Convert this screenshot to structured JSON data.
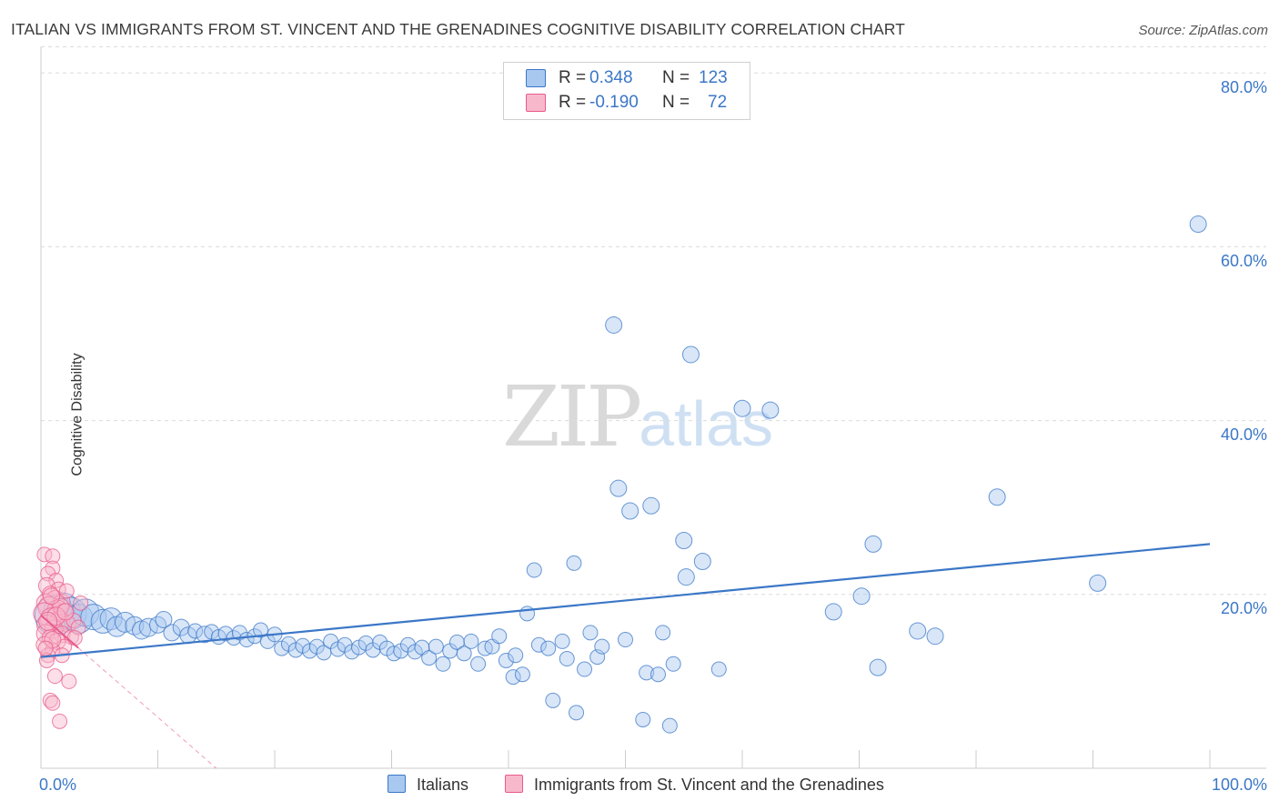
{
  "title": "ITALIAN VS IMMIGRANTS FROM ST. VINCENT AND THE GRENADINES COGNITIVE DISABILITY CORRELATION CHART",
  "source": "Source: ZipAtlas.com",
  "watermark": {
    "zip": "ZIP",
    "atlas": "atlas"
  },
  "legend": {
    "rows": [
      {
        "r_label": "R =",
        "r_value": "0.348",
        "n_label": "N =",
        "n_value": "123",
        "color": "#a8c8f0"
      },
      {
        "r_label": "R =",
        "r_value": "-0.190",
        "n_label": "N =",
        "n_value": "72",
        "color": "#f8b8cc"
      }
    ]
  },
  "colors": {
    "blue": "#3b77c7",
    "blue_fill": "#a8c8f0",
    "pink": "#e85a8a",
    "pink_fill": "#f8b8cc"
  },
  "chart_data": {
    "type": "scatter",
    "title": "ITALIAN VS IMMIGRANTS FROM ST. VINCENT AND THE GRENADINES COGNITIVE DISABILITY CORRELATION CHART",
    "xlabel": "",
    "ylabel": "Cognitive Disability",
    "xlim": [
      0,
      100
    ],
    "ylim": [
      0,
      83
    ],
    "x_tick_labels": [
      "0.0%",
      "100.0%"
    ],
    "y_ticks": [
      20,
      40,
      60,
      80
    ],
    "y_tick_labels": [
      "20.0%",
      "40.0%",
      "60.0%",
      "80.0%"
    ],
    "grid": true,
    "legend_position": "top-center",
    "series": [
      {
        "name": "Italians",
        "color": "#3b77c7",
        "trend": {
          "x": [
            0,
            100
          ],
          "y": [
            12.8,
            25.8
          ]
        },
        "points": [
          [
            1.2,
            17.6,
            22
          ],
          [
            1.8,
            18.1,
            20
          ],
          [
            2.5,
            17.8,
            18
          ],
          [
            3.2,
            17.2,
            16
          ],
          [
            3.8,
            17.9,
            15
          ],
          [
            4.5,
            17.4,
            14
          ],
          [
            5.3,
            16.9,
            13
          ],
          [
            6.0,
            17.2,
            12
          ],
          [
            6.5,
            16.3,
            11
          ],
          [
            7.2,
            16.8,
            11
          ],
          [
            8.0,
            16.4,
            10
          ],
          [
            8.6,
            15.9,
            10
          ],
          [
            9.2,
            16.2,
            10
          ],
          [
            10.0,
            16.5,
            9
          ],
          [
            10.5,
            17.1,
            9
          ],
          [
            11.2,
            15.6,
            9
          ],
          [
            12.0,
            16.2,
            9
          ],
          [
            12.6,
            15.3,
            9
          ],
          [
            13.2,
            15.8,
            8
          ],
          [
            14.0,
            15.4,
            9
          ],
          [
            14.6,
            15.7,
            8
          ],
          [
            15.2,
            15.1,
            8
          ],
          [
            15.8,
            15.5,
            8
          ],
          [
            16.5,
            15.0,
            8
          ],
          [
            17.0,
            15.6,
            8
          ],
          [
            17.6,
            14.8,
            8
          ],
          [
            18.3,
            15.2,
            8
          ],
          [
            18.8,
            15.9,
            8
          ],
          [
            19.4,
            14.6,
            8
          ],
          [
            20.0,
            15.4,
            8
          ],
          [
            20.6,
            13.8,
            8
          ],
          [
            21.2,
            14.3,
            8
          ],
          [
            21.8,
            13.6,
            8
          ],
          [
            22.4,
            14.1,
            8
          ],
          [
            23.0,
            13.5,
            8
          ],
          [
            23.6,
            14.0,
            8
          ],
          [
            24.2,
            13.3,
            8
          ],
          [
            24.8,
            14.6,
            8
          ],
          [
            25.4,
            13.7,
            8
          ],
          [
            26.0,
            14.2,
            8
          ],
          [
            26.6,
            13.4,
            8
          ],
          [
            27.2,
            13.9,
            8
          ],
          [
            27.8,
            14.4,
            8
          ],
          [
            28.4,
            13.6,
            8
          ],
          [
            29.0,
            14.5,
            8
          ],
          [
            29.6,
            13.8,
            8
          ],
          [
            30.2,
            13.2,
            8
          ],
          [
            30.8,
            13.5,
            8
          ],
          [
            31.4,
            14.2,
            8
          ],
          [
            32.0,
            13.4,
            8
          ],
          [
            32.6,
            13.9,
            8
          ],
          [
            33.2,
            12.7,
            8
          ],
          [
            33.8,
            14.0,
            8
          ],
          [
            34.4,
            12.0,
            8
          ],
          [
            35.0,
            13.5,
            8
          ],
          [
            35.6,
            14.5,
            8
          ],
          [
            36.2,
            13.2,
            8
          ],
          [
            36.8,
            14.6,
            8
          ],
          [
            37.4,
            12.0,
            8
          ],
          [
            38.0,
            13.8,
            8
          ],
          [
            38.6,
            14.0,
            8
          ],
          [
            39.2,
            15.2,
            8
          ],
          [
            39.8,
            12.4,
            8
          ],
          [
            40.4,
            10.5,
            8
          ],
          [
            40.6,
            13.0,
            8
          ],
          [
            41.2,
            10.8,
            8
          ],
          [
            41.6,
            17.8,
            8
          ],
          [
            42.2,
            22.8,
            8
          ],
          [
            42.6,
            14.2,
            8
          ],
          [
            43.4,
            13.8,
            8
          ],
          [
            43.8,
            7.8,
            8
          ],
          [
            44.6,
            14.6,
            8
          ],
          [
            45.0,
            12.6,
            8
          ],
          [
            45.6,
            23.6,
            8
          ],
          [
            45.8,
            6.4,
            8
          ],
          [
            46.5,
            11.4,
            8
          ],
          [
            47.0,
            15.6,
            8
          ],
          [
            47.6,
            12.8,
            8
          ],
          [
            48.0,
            14.0,
            8
          ],
          [
            49.0,
            51.0,
            9
          ],
          [
            49.4,
            32.2,
            9
          ],
          [
            50.0,
            14.8,
            8
          ],
          [
            50.4,
            29.6,
            9
          ],
          [
            51.5,
            5.6,
            8
          ],
          [
            51.8,
            11.0,
            8
          ],
          [
            52.2,
            30.2,
            9
          ],
          [
            52.8,
            10.8,
            8
          ],
          [
            53.2,
            15.6,
            8
          ],
          [
            53.8,
            4.9,
            8
          ],
          [
            54.1,
            12.0,
            8
          ],
          [
            55.0,
            26.2,
            9
          ],
          [
            55.2,
            22.0,
            9
          ],
          [
            55.6,
            47.6,
            9
          ],
          [
            56.6,
            23.8,
            9
          ],
          [
            58.0,
            11.4,
            8
          ],
          [
            60.0,
            41.4,
            9
          ],
          [
            62.4,
            41.2,
            9
          ],
          [
            67.8,
            18.0,
            9
          ],
          [
            70.2,
            19.8,
            9
          ],
          [
            71.2,
            25.8,
            9
          ],
          [
            71.6,
            11.6,
            9
          ],
          [
            75.0,
            15.8,
            9
          ],
          [
            76.5,
            15.2,
            9
          ],
          [
            81.8,
            31.2,
            9
          ],
          [
            90.4,
            21.3,
            9
          ],
          [
            99.0,
            62.6,
            9
          ]
        ]
      },
      {
        "name": "Immigrants from St. Vincent and the Grenadines",
        "color": "#e85a8a",
        "trend": {
          "x": [
            0,
            15
          ],
          "y": [
            17.6,
            0
          ]
        },
        "points": [
          [
            0.3,
            24.6,
            8
          ],
          [
            1.0,
            24.4,
            8
          ],
          [
            1.0,
            23.0,
            8
          ],
          [
            0.6,
            22.4,
            8
          ],
          [
            1.3,
            21.6,
            8
          ],
          [
            0.5,
            21.0,
            9
          ],
          [
            1.5,
            20.6,
            8
          ],
          [
            0.8,
            20.0,
            9
          ],
          [
            1.2,
            19.4,
            10
          ],
          [
            0.4,
            19.0,
            10
          ],
          [
            1.8,
            19.1,
            9
          ],
          [
            0.7,
            18.5,
            12
          ],
          [
            1.4,
            18.2,
            11
          ],
          [
            0.3,
            17.8,
            12
          ],
          [
            2.0,
            17.9,
            10
          ],
          [
            0.9,
            17.2,
            12
          ],
          [
            1.6,
            16.9,
            11
          ],
          [
            0.5,
            16.5,
            11
          ],
          [
            2.3,
            16.6,
            9
          ],
          [
            1.1,
            16.0,
            10
          ],
          [
            0.4,
            15.5,
            10
          ],
          [
            1.8,
            15.4,
            9
          ],
          [
            0.8,
            15.0,
            9
          ],
          [
            2.6,
            15.1,
            8
          ],
          [
            1.4,
            14.6,
            9
          ],
          [
            0.3,
            14.2,
            9
          ],
          [
            2.0,
            14.0,
            8
          ],
          [
            1.0,
            13.6,
            8
          ],
          [
            0.6,
            13.0,
            8
          ],
          [
            1.8,
            13.0,
            8
          ],
          [
            0.5,
            12.4,
            8
          ],
          [
            1.2,
            10.6,
            8
          ],
          [
            2.4,
            10.0,
            8
          ],
          [
            0.8,
            7.8,
            8
          ],
          [
            1.0,
            7.5,
            8
          ],
          [
            1.6,
            5.4,
            8
          ],
          [
            2.8,
            17.0,
            8
          ],
          [
            3.2,
            16.2,
            8
          ],
          [
            2.9,
            15.0,
            8
          ],
          [
            3.4,
            19.0,
            8
          ],
          [
            2.2,
            20.4,
            8
          ],
          [
            1.7,
            18.6,
            9
          ],
          [
            0.9,
            19.8,
            9
          ],
          [
            1.3,
            17.5,
            10
          ],
          [
            0.6,
            16.9,
            10
          ],
          [
            2.1,
            18.0,
            9
          ],
          [
            1.0,
            14.8,
            9
          ],
          [
            0.4,
            13.8,
            8
          ]
        ]
      }
    ]
  },
  "bottom_legend": [
    {
      "label": "Italians",
      "color": "#a8c8f0"
    },
    {
      "label": "Immigrants from St. Vincent and the Grenadines",
      "color": "#f8b8cc"
    }
  ]
}
